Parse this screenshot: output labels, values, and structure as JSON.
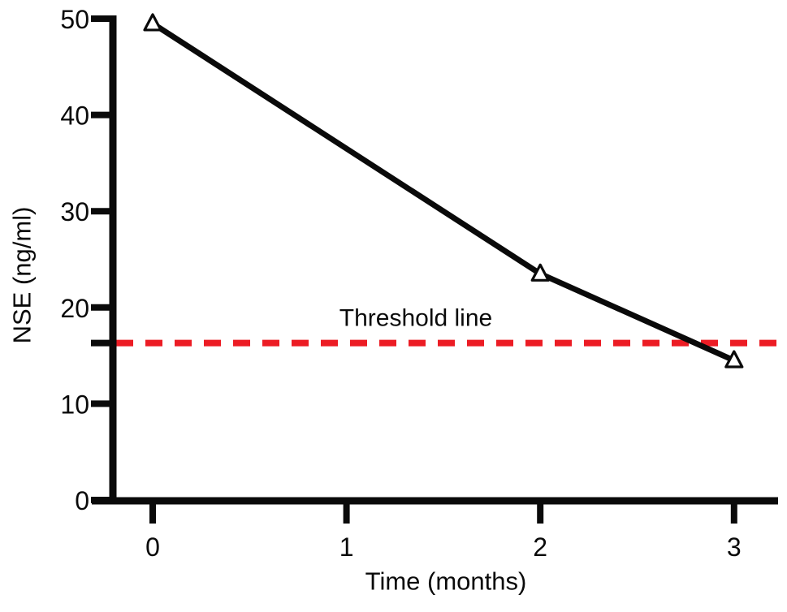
{
  "figure": {
    "background_color": "#ffffff"
  },
  "chart_data": {
    "type": "line",
    "title": "",
    "xlabel": "Time (months)",
    "ylabel": "NSE (ng/ml)",
    "x": [
      0,
      2,
      3
    ],
    "series": [
      {
        "name": "NSE",
        "values": [
          49.5,
          23.5,
          14.5
        ],
        "color": "#0a0a0a",
        "marker": "open-triangle",
        "marker_fill": "#ffffff"
      }
    ],
    "x_ticks": [
      0,
      1,
      2,
      3
    ],
    "y_ticks": [
      0,
      10,
      20,
      30,
      40,
      50
    ],
    "xlim": [
      -0.32,
      3.23
    ],
    "ylim": [
      0,
      50
    ],
    "grid": false,
    "legend": "none",
    "threshold": {
      "value": 16.3,
      "label": "Threshold line",
      "color": "#ec1c24",
      "style": "dashed",
      "axis_tick": true
    },
    "colors": {
      "axis": "#0a0a0a",
      "line": "#0a0a0a",
      "threshold": "#ec1c24",
      "background": "#ffffff"
    }
  }
}
